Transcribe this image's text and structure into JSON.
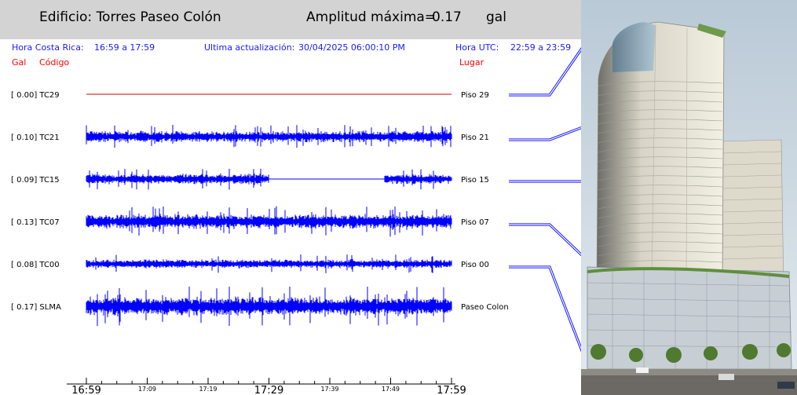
{
  "header": {
    "building_label": "Edificio: Torres Paseo Colón",
    "max_amp_label": "Amplitud máxima=",
    "max_amp_value": "0.17",
    "max_amp_unit": "gal"
  },
  "info": {
    "local_time_label": "Hora Costa Rica:",
    "local_time_range": "16:59 a 17:59",
    "update_label": "Ultima actualización:",
    "update_value": "30/04/2025 06:00:10 PM",
    "utc_label": "Hora UTC:",
    "utc_range": "22:59 a 23:59"
  },
  "columns": {
    "gal": "Gal",
    "code": "Código",
    "place": "Lugar"
  },
  "colors": {
    "trace": "#0000ff",
    "flat_trace": "#cc0000",
    "info_text": "#1a1aff",
    "column_label": "#ff0000",
    "header_bg": "#d3d3d3"
  },
  "chart_data": {
    "type": "line",
    "title": "Edificio: Torres Paseo Colón",
    "x_unit": "local time (Hora Costa Rica)",
    "xlim": [
      "16:59",
      "17:59"
    ],
    "x_ticks": [
      "16:59",
      "17:09",
      "17:19",
      "17:29",
      "17:39",
      "17:49",
      "17:59"
    ],
    "x_tick_major": [
      "16:59",
      "17:29",
      "17:59"
    ],
    "max_amplitude_gal": 0.17,
    "series": [
      {
        "code": "TC29",
        "gal": "0.00",
        "place": "Piso 29",
        "peak_gal": 0.0,
        "flat": true
      },
      {
        "code": "TC21",
        "gal": "0.10",
        "place": "Piso 21",
        "peak_gal": 0.1
      },
      {
        "code": "TC15",
        "gal": "0.09",
        "place": "Piso 15",
        "peak_gal": 0.09,
        "gap": [
          "17:29",
          "17:48"
        ]
      },
      {
        "code": "TC07",
        "gal": "0.13",
        "place": "Piso 07",
        "peak_gal": 0.13
      },
      {
        "code": "TC00",
        "gal": "0.08",
        "place": "Piso 00",
        "peak_gal": 0.08
      },
      {
        "code": "SLMA",
        "gal": "0.17",
        "place": "Paseo Colon",
        "peak_gal": 0.17
      }
    ]
  }
}
